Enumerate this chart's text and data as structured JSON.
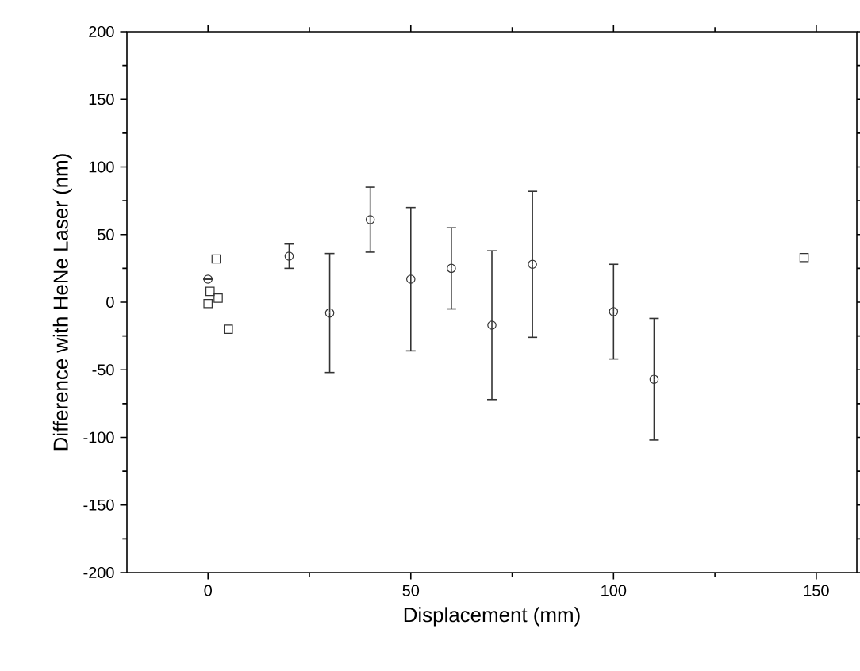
{
  "chart_data": {
    "type": "scatter",
    "xlabel": "Displacement (mm)",
    "ylabel": "Difference with HeNe Laser (nm)",
    "xlim": [
      -20,
      160
    ],
    "xticks": [
      0,
      50,
      100,
      150
    ],
    "ylim": [
      -200,
      200
    ],
    "yticks": [
      -200,
      -150,
      -100,
      -50,
      0,
      50,
      100,
      150,
      200
    ],
    "series": [
      {
        "marker": "square",
        "color": "#333333",
        "x": [
          2,
          0,
          0.5,
          2.5,
          5,
          147
        ],
        "values": [
          32,
          -1,
          8,
          3,
          -20,
          33
        ]
      },
      {
        "marker": "circle",
        "color": "#333333",
        "x": [
          0,
          20,
          30,
          40,
          50,
          60,
          70,
          80,
          100,
          110
        ],
        "values": [
          17,
          34,
          -8,
          61,
          17,
          25,
          -17,
          28,
          -7,
          -57
        ],
        "errors": [
          null,
          9,
          44,
          24,
          53,
          30,
          55,
          54,
          35,
          45
        ]
      }
    ]
  }
}
